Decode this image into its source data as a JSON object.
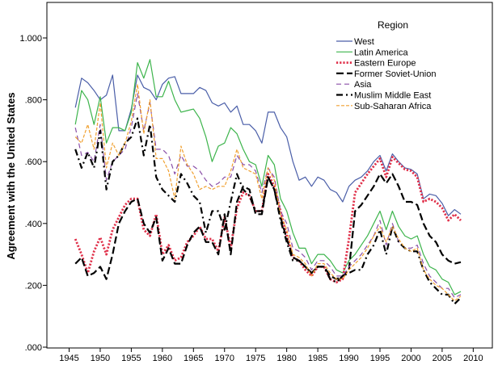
{
  "chart_data": {
    "type": "line",
    "title": "",
    "xlabel": "",
    "ylabel": "Agreement with the United States",
    "xlim": [
      1942,
      2013
    ],
    "ylim": [
      0,
      1.1
    ],
    "xticks": [
      1945,
      1950,
      1955,
      1960,
      1965,
      1970,
      1975,
      1980,
      1985,
      1990,
      1995,
      2000,
      2005,
      2010
    ],
    "yticks": [
      0,
      0.2,
      0.4,
      0.6,
      0.8,
      1.0
    ],
    "ytick_labels": [
      ".000",
      ".200",
      ".400",
      ".600",
      ".800",
      "1.000"
    ],
    "grid": false,
    "legend": {
      "title": "Region",
      "placement": "top-right"
    },
    "x_start": 1946,
    "series": [
      {
        "name": "West",
        "color": "#4a5ea8",
        "style": "solid",
        "values": [
          0.775,
          0.87,
          0.855,
          0.83,
          0.8,
          0.815,
          0.88,
          0.7,
          0.7,
          0.77,
          0.88,
          0.84,
          0.83,
          0.8,
          0.85,
          0.87,
          0.875,
          0.82,
          0.82,
          0.82,
          0.84,
          0.83,
          0.79,
          0.78,
          0.79,
          0.76,
          0.78,
          0.72,
          0.72,
          0.7,
          0.66,
          0.76,
          0.76,
          0.71,
          0.68,
          0.6,
          0.54,
          0.55,
          0.52,
          0.55,
          0.54,
          0.51,
          0.5,
          0.47,
          0.52,
          0.54,
          0.55,
          0.57,
          0.6,
          0.62,
          0.57,
          0.625,
          0.6,
          0.58,
          0.575,
          0.56,
          0.48,
          0.495,
          0.49,
          0.465,
          0.425,
          0.445,
          0.43
        ]
      },
      {
        "name": "Latin America",
        "color": "#3cb44b",
        "style": "solid",
        "values": [
          0.72,
          0.83,
          0.8,
          0.72,
          0.81,
          0.66,
          0.71,
          0.71,
          0.7,
          0.76,
          0.92,
          0.87,
          0.93,
          0.81,
          0.81,
          0.86,
          0.8,
          0.76,
          0.765,
          0.77,
          0.74,
          0.68,
          0.6,
          0.65,
          0.66,
          0.71,
          0.69,
          0.64,
          0.6,
          0.59,
          0.52,
          0.62,
          0.59,
          0.48,
          0.44,
          0.37,
          0.32,
          0.32,
          0.27,
          0.3,
          0.3,
          0.28,
          0.25,
          0.24,
          0.28,
          0.3,
          0.33,
          0.36,
          0.4,
          0.44,
          0.38,
          0.44,
          0.39,
          0.36,
          0.35,
          0.36,
          0.3,
          0.26,
          0.25,
          0.22,
          0.21,
          0.17,
          0.18
        ]
      },
      {
        "name": "Eastern Europe",
        "color": "#e0304a",
        "style": "dotted",
        "values": [
          0.35,
          0.3,
          0.24,
          0.31,
          0.355,
          0.3,
          0.38,
          0.42,
          0.46,
          0.48,
          0.48,
          0.38,
          0.36,
          0.43,
          0.3,
          0.33,
          0.28,
          0.29,
          0.34,
          0.36,
          0.39,
          0.35,
          0.35,
          0.31,
          0.42,
          0.32,
          0.45,
          0.5,
          0.49,
          0.44,
          0.44,
          0.56,
          0.52,
          0.44,
          0.36,
          0.29,
          0.28,
          0.25,
          0.23,
          0.26,
          0.26,
          0.22,
          0.21,
          0.22,
          0.35,
          0.5,
          0.53,
          0.56,
          0.585,
          0.61,
          0.55,
          0.615,
          0.595,
          0.575,
          0.57,
          0.55,
          0.47,
          0.48,
          0.47,
          0.45,
          0.41,
          0.43,
          0.41
        ]
      },
      {
        "name": "Former Soviet-Union",
        "color": "#000000",
        "style": "longdash",
        "values": [
          0.27,
          0.29,
          0.23,
          0.24,
          0.26,
          0.22,
          0.3,
          0.4,
          0.44,
          0.47,
          0.48,
          0.4,
          0.37,
          0.42,
          0.28,
          0.32,
          0.27,
          0.27,
          0.33,
          0.37,
          0.39,
          0.34,
          0.34,
          0.3,
          0.43,
          0.3,
          0.47,
          0.52,
          0.51,
          0.43,
          0.43,
          0.55,
          0.51,
          0.42,
          0.35,
          0.29,
          0.28,
          0.26,
          0.24,
          0.26,
          0.26,
          0.23,
          0.22,
          0.23,
          0.25,
          0.44,
          0.46,
          0.49,
          0.52,
          0.56,
          0.53,
          0.56,
          0.52,
          0.47,
          0.47,
          0.46,
          0.4,
          0.36,
          0.34,
          0.3,
          0.28,
          0.27,
          0.275
        ]
      },
      {
        "name": "Asia",
        "color": "#8a4fa8",
        "style": "dashed",
        "values": [
          0.71,
          0.62,
          0.63,
          0.6,
          0.72,
          0.54,
          0.6,
          0.62,
          0.64,
          0.71,
          0.82,
          0.7,
          0.79,
          0.64,
          0.64,
          0.62,
          0.56,
          0.62,
          0.585,
          0.585,
          0.57,
          0.54,
          0.52,
          0.53,
          0.55,
          0.55,
          0.62,
          0.59,
          0.59,
          0.57,
          0.5,
          0.58,
          0.55,
          0.44,
          0.4,
          0.32,
          0.31,
          0.29,
          0.25,
          0.28,
          0.28,
          0.26,
          0.23,
          0.23,
          0.26,
          0.28,
          0.3,
          0.33,
          0.36,
          0.41,
          0.33,
          0.4,
          0.34,
          0.32,
          0.32,
          0.33,
          0.27,
          0.23,
          0.21,
          0.19,
          0.19,
          0.16,
          0.17
        ]
      },
      {
        "name": "Muslim Middle East",
        "color": "#000000",
        "style": "dashdot",
        "values": [
          0.64,
          0.58,
          0.63,
          0.58,
          0.7,
          0.51,
          0.6,
          0.62,
          0.66,
          0.68,
          0.74,
          0.62,
          0.72,
          0.55,
          0.51,
          0.49,
          0.47,
          0.56,
          0.53,
          0.49,
          0.47,
          0.37,
          0.44,
          0.44,
          0.38,
          0.47,
          0.56,
          0.51,
          0.49,
          0.44,
          0.44,
          0.55,
          0.51,
          0.41,
          0.34,
          0.28,
          0.28,
          0.26,
          0.24,
          0.26,
          0.26,
          0.22,
          0.21,
          0.23,
          0.24,
          0.25,
          0.25,
          0.3,
          0.33,
          0.38,
          0.3,
          0.39,
          0.34,
          0.32,
          0.31,
          0.31,
          0.25,
          0.21,
          0.19,
          0.17,
          0.17,
          0.14,
          0.16
        ]
      },
      {
        "name": "Sub-Saharan Africa",
        "color": "#f0a030",
        "style": "shortdash",
        "values": [
          0.68,
          0.66,
          0.72,
          0.64,
          0.79,
          0.58,
          0.66,
          0.62,
          0.66,
          0.73,
          0.85,
          0.69,
          0.8,
          0.61,
          0.61,
          0.57,
          0.48,
          0.65,
          0.59,
          0.56,
          0.51,
          0.52,
          0.51,
          0.52,
          0.52,
          0.57,
          0.64,
          0.58,
          0.57,
          0.56,
          0.48,
          0.58,
          0.54,
          0.43,
          0.38,
          0.3,
          0.29,
          0.27,
          0.23,
          0.27,
          0.27,
          0.24,
          0.22,
          0.22,
          0.25,
          0.27,
          0.29,
          0.32,
          0.36,
          0.39,
          0.34,
          0.39,
          0.35,
          0.32,
          0.31,
          0.32,
          0.25,
          0.22,
          0.2,
          0.19,
          0.17,
          0.15,
          0.165
        ]
      }
    ]
  }
}
